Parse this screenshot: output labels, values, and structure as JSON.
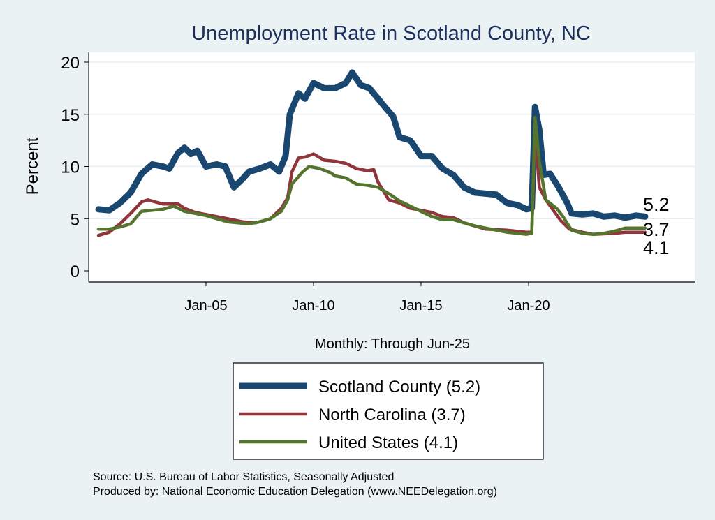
{
  "chart_data": {
    "type": "line",
    "title": "Unemployment Rate in Scotland  County, NC",
    "ylabel": "Percent",
    "xlabel": "Monthly: Through Jun-25",
    "ylim": [
      0,
      20
    ],
    "xlim": [
      1999.5,
      2028.0
    ],
    "yticks": [
      0,
      5,
      10,
      15,
      20
    ],
    "ytick_labels": [
      "0",
      "5",
      "10",
      "15",
      "20"
    ],
    "xticks": [
      2005,
      2010,
      2015,
      2020
    ],
    "xtick_labels": [
      "Jan-05",
      "Jan-10",
      "Jan-15",
      "Jan-20"
    ],
    "grid": true,
    "legend_position": "bottom",
    "series": [
      {
        "name": "Scotland  County (5.2)",
        "color": "#1a476f",
        "width": 9,
        "end_label": "5.2",
        "points": [
          [
            2000,
            5.9
          ],
          [
            2000.5,
            5.8
          ],
          [
            2001,
            6.5
          ],
          [
            2001.5,
            7.5
          ],
          [
            2002,
            9.3
          ],
          [
            2002.5,
            10.2
          ],
          [
            2003,
            10.0
          ],
          [
            2003.3,
            9.8
          ],
          [
            2003.7,
            11.3
          ],
          [
            2004,
            11.8
          ],
          [
            2004.3,
            11.2
          ],
          [
            2004.6,
            11.5
          ],
          [
            2005,
            10.0
          ],
          [
            2005.5,
            10.2
          ],
          [
            2005.9,
            10.0
          ],
          [
            2006.3,
            8.0
          ],
          [
            2006.7,
            8.8
          ],
          [
            2007,
            9.5
          ],
          [
            2007.5,
            9.8
          ],
          [
            2008,
            10.2
          ],
          [
            2008.4,
            9.5
          ],
          [
            2008.7,
            11.0
          ],
          [
            2008.9,
            15.0
          ],
          [
            2009.3,
            17.0
          ],
          [
            2009.6,
            16.5
          ],
          [
            2010,
            18.0
          ],
          [
            2010.5,
            17.5
          ],
          [
            2011,
            17.5
          ],
          [
            2011.5,
            18.0
          ],
          [
            2011.8,
            19.0
          ],
          [
            2012.2,
            17.8
          ],
          [
            2012.6,
            17.5
          ],
          [
            2013,
            16.5
          ],
          [
            2013.4,
            15.5
          ],
          [
            2013.7,
            14.8
          ],
          [
            2014,
            12.8
          ],
          [
            2014.5,
            12.5
          ],
          [
            2015,
            11.0
          ],
          [
            2015.5,
            11.0
          ],
          [
            2016,
            9.8
          ],
          [
            2016.5,
            9.2
          ],
          [
            2017,
            8.0
          ],
          [
            2017.5,
            7.5
          ],
          [
            2018,
            7.4
          ],
          [
            2018.5,
            7.3
          ],
          [
            2019,
            6.5
          ],
          [
            2019.5,
            6.3
          ],
          [
            2019.9,
            5.9
          ],
          [
            2020.15,
            6.0
          ],
          [
            2020.3,
            15.7
          ],
          [
            2020.5,
            13.5
          ],
          [
            2020.7,
            9.2
          ],
          [
            2021,
            9.3
          ],
          [
            2021.4,
            8.0
          ],
          [
            2021.8,
            6.5
          ],
          [
            2022,
            5.5
          ],
          [
            2022.5,
            5.4
          ],
          [
            2023,
            5.5
          ],
          [
            2023.5,
            5.2
          ],
          [
            2024,
            5.3
          ],
          [
            2024.5,
            5.1
          ],
          [
            2025,
            5.3
          ],
          [
            2025.42,
            5.2
          ]
        ]
      },
      {
        "name": "North Carolina (3.7)",
        "color": "#90353b",
        "width": 4.5,
        "end_label": "3.7",
        "points": [
          [
            2000,
            3.4
          ],
          [
            2000.5,
            3.7
          ],
          [
            2001,
            4.5
          ],
          [
            2001.5,
            5.5
          ],
          [
            2002,
            6.6
          ],
          [
            2002.3,
            6.8
          ],
          [
            2003,
            6.4
          ],
          [
            2003.7,
            6.4
          ],
          [
            2004,
            6.0
          ],
          [
            2004.5,
            5.6
          ],
          [
            2005,
            5.4
          ],
          [
            2006,
            5.0
          ],
          [
            2006.7,
            4.7
          ],
          [
            2007.3,
            4.6
          ],
          [
            2007.7,
            4.8
          ],
          [
            2008,
            5.0
          ],
          [
            2008.5,
            6.0
          ],
          [
            2008.8,
            7.0
          ],
          [
            2009,
            9.5
          ],
          [
            2009.3,
            10.8
          ],
          [
            2009.6,
            10.9
          ],
          [
            2010,
            11.2
          ],
          [
            2010.5,
            10.6
          ],
          [
            2011,
            10.5
          ],
          [
            2011.5,
            10.3
          ],
          [
            2012,
            9.8
          ],
          [
            2012.5,
            9.6
          ],
          [
            2012.8,
            9.7
          ],
          [
            2013,
            8.5
          ],
          [
            2013.5,
            6.8
          ],
          [
            2014,
            6.5
          ],
          [
            2014.5,
            6.0
          ],
          [
            2015,
            5.8
          ],
          [
            2015.5,
            5.6
          ],
          [
            2016,
            5.2
          ],
          [
            2016.5,
            5.1
          ],
          [
            2017,
            4.6
          ],
          [
            2017.5,
            4.3
          ],
          [
            2018,
            4.0
          ],
          [
            2019,
            3.9
          ],
          [
            2019.9,
            3.7
          ],
          [
            2020.15,
            3.7
          ],
          [
            2020.3,
            13.5
          ],
          [
            2020.5,
            8.0
          ],
          [
            2020.8,
            6.8
          ],
          [
            2021.5,
            4.8
          ],
          [
            2021.9,
            4.0
          ],
          [
            2022.5,
            3.7
          ],
          [
            2023,
            3.5
          ],
          [
            2024,
            3.6
          ],
          [
            2024.5,
            3.7
          ],
          [
            2025.42,
            3.7
          ]
        ]
      },
      {
        "name": "United States (4.1)",
        "color": "#55752f",
        "width": 4.5,
        "end_label": "4.1",
        "points": [
          [
            2000,
            4.0
          ],
          [
            2000.5,
            4.0
          ],
          [
            2001,
            4.2
          ],
          [
            2001.5,
            4.5
          ],
          [
            2002,
            5.7
          ],
          [
            2002.5,
            5.8
          ],
          [
            2003,
            5.9
          ],
          [
            2003.5,
            6.2
          ],
          [
            2004,
            5.7
          ],
          [
            2004.5,
            5.5
          ],
          [
            2005,
            5.3
          ],
          [
            2005.5,
            5.0
          ],
          [
            2006,
            4.7
          ],
          [
            2006.5,
            4.6
          ],
          [
            2007,
            4.5
          ],
          [
            2007.5,
            4.7
          ],
          [
            2008,
            5.0
          ],
          [
            2008.5,
            5.7
          ],
          [
            2008.8,
            6.8
          ],
          [
            2009,
            8.3
          ],
          [
            2009.5,
            9.5
          ],
          [
            2009.8,
            10.0
          ],
          [
            2010.3,
            9.8
          ],
          [
            2010.8,
            9.4
          ],
          [
            2011,
            9.1
          ],
          [
            2011.5,
            8.9
          ],
          [
            2012,
            8.3
          ],
          [
            2012.5,
            8.2
          ],
          [
            2013,
            8.0
          ],
          [
            2013.5,
            7.4
          ],
          [
            2014,
            6.7
          ],
          [
            2014.5,
            6.2
          ],
          [
            2015,
            5.7
          ],
          [
            2015.5,
            5.2
          ],
          [
            2016,
            4.9
          ],
          [
            2016.5,
            4.9
          ],
          [
            2017,
            4.6
          ],
          [
            2017.5,
            4.3
          ],
          [
            2018,
            4.1
          ],
          [
            2019,
            3.7
          ],
          [
            2019.9,
            3.5
          ],
          [
            2020.15,
            3.6
          ],
          [
            2020.3,
            14.7
          ],
          [
            2020.5,
            10.5
          ],
          [
            2020.8,
            6.8
          ],
          [
            2021.3,
            6.0
          ],
          [
            2021.6,
            5.2
          ],
          [
            2022,
            3.9
          ],
          [
            2022.5,
            3.6
          ],
          [
            2023,
            3.5
          ],
          [
            2023.5,
            3.6
          ],
          [
            2024,
            3.8
          ],
          [
            2024.5,
            4.1
          ],
          [
            2025.42,
            4.1
          ]
        ]
      }
    ]
  },
  "footer": {
    "source": "Source: U.S. Bureau of Labor Statistics, Seasonally Adjusted",
    "produced_by": "Produced by: National Economic Education Delegation (www.NEEDelegation.org)"
  }
}
